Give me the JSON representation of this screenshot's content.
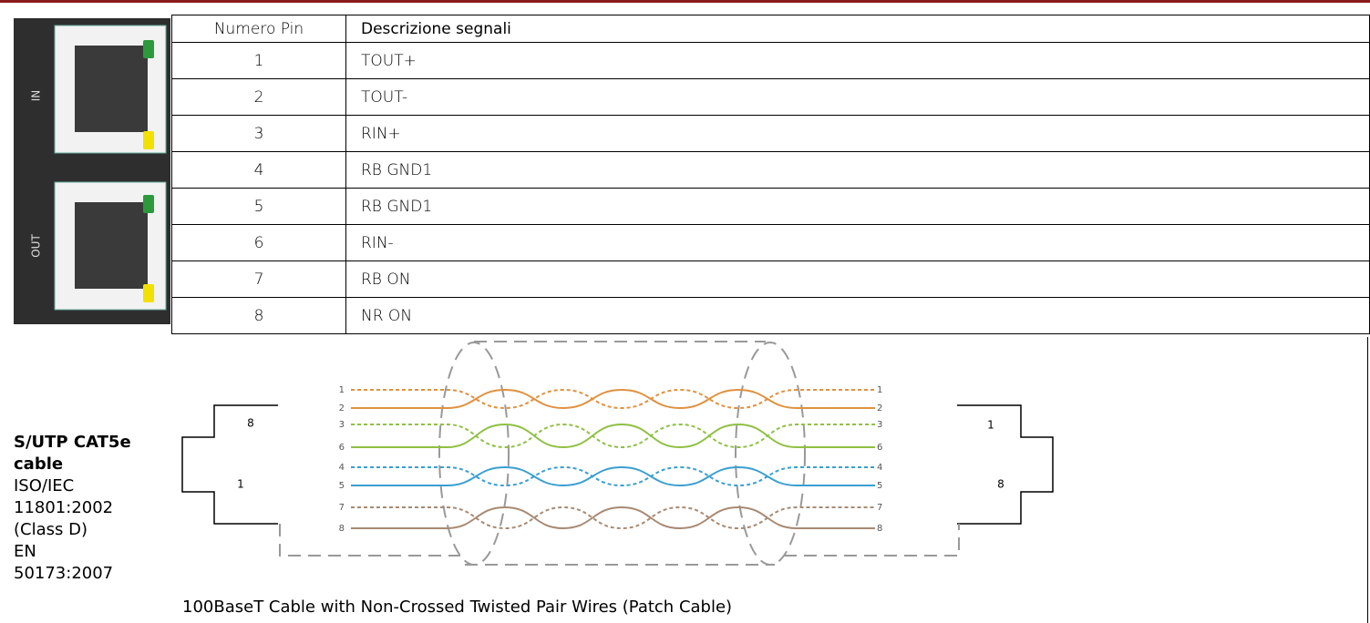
{
  "device": {
    "labels": [
      "IN",
      "OUT"
    ]
  },
  "table": {
    "header": [
      "Numero Pin",
      "Descrizione segnali"
    ],
    "rows": [
      [
        "1",
        "TOUT+"
      ],
      [
        "2",
        "TOUT-"
      ],
      [
        "3",
        "RIN+"
      ],
      [
        "4",
        "RB GND1"
      ],
      [
        "5",
        "RB GND1"
      ],
      [
        "6",
        "RIN-"
      ],
      [
        "7",
        "RB ON"
      ],
      [
        "8",
        "NR ON"
      ]
    ]
  },
  "cable": {
    "title": "S/UTP CAT5e cable",
    "lines": [
      "ISO/IEC",
      "11801:2002",
      "(Class D)",
      "EN",
      "50173:2007"
    ],
    "caption": "100BaseT Cable with Non-Crossed Twisted Pair Wires (Patch Cable)"
  },
  "diagram": {
    "pins": [
      "1",
      "2",
      "3",
      "6",
      "4",
      "5",
      "7",
      "8"
    ],
    "left_connector": [
      "8",
      "1"
    ],
    "right_connector": [
      "1",
      "8"
    ]
  }
}
